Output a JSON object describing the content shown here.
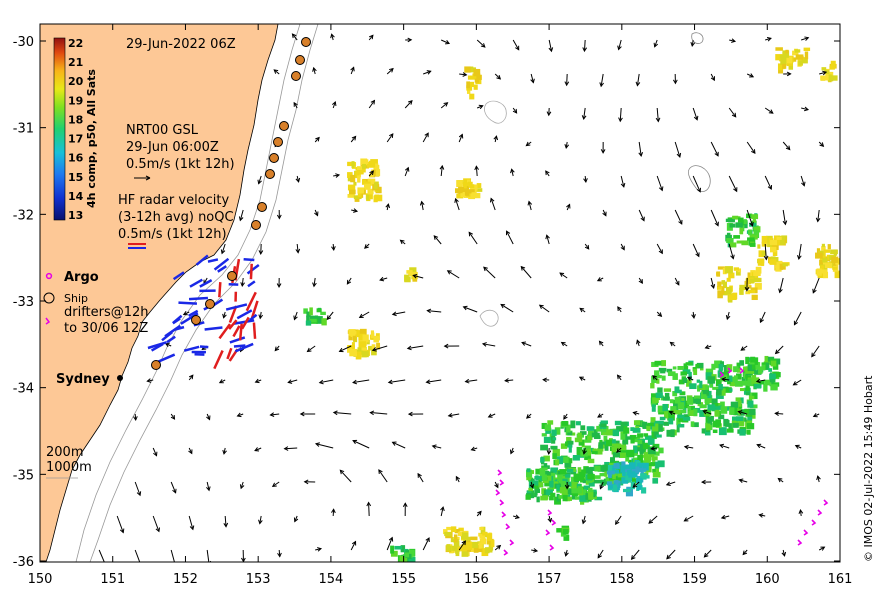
{
  "map": {
    "timestamp": "29-Jun-2022 06Z",
    "credit": "© IMOS 02-Jul-2022 15:49 Hobart",
    "colors": {
      "land": "#fdc896",
      "ocean": "#ffffff",
      "radar_u": "#1a28e6",
      "radar_v": "#e01e1e",
      "argo": "#e600e6",
      "drifter": "#e600e6",
      "ship_fill": "#d8802a"
    },
    "lon_ticks": [
      "150",
      "151",
      "152",
      "153",
      "154",
      "155",
      "156",
      "157",
      "158",
      "159",
      "160",
      "161"
    ],
    "lat_ticks": [
      "-30",
      "-31",
      "-32",
      "-33",
      "-34",
      "-35",
      "-36"
    ],
    "colorbar": {
      "label": "4h comp, p50, All Sats",
      "ticks": [
        "22",
        "21",
        "20",
        "19",
        "18",
        "17",
        "16",
        "15",
        "14",
        "13"
      ]
    },
    "legend": {
      "gsl_line1": "NRT00 GSL",
      "gsl_line2": "29-Jun 06:00Z",
      "gsl_line3": "0.5m/s (1kt 12h)",
      "hf_line1": "HF radar velocity",
      "hf_line2": "(3-12h avg) noQC",
      "hf_line3": "0.5m/s (1kt 12h)",
      "argo": "Argo",
      "ship": "Ship",
      "drifters_line1": "drifters@12h",
      "drifters_line2": "to 30/06 12Z"
    },
    "places": {
      "sydney": "Sydney"
    },
    "isobaths": {
      "depth_200": "200m",
      "depth_1000": "1000m"
    }
  }
}
